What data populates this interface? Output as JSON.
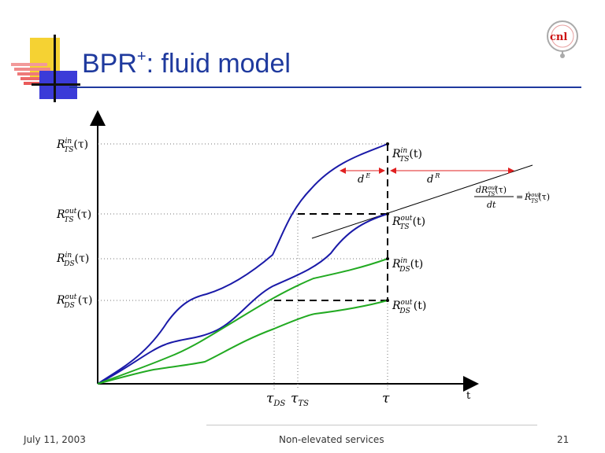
{
  "slide": {
    "title": "BPR",
    "title_sup": "+",
    "title_rest": ": fluid model",
    "footer_date": "July 11, 2003",
    "footer_center": "Non-elevated services",
    "page_number": "21"
  },
  "diagram": {
    "axis_x_label": "t",
    "y_labels": {
      "r_ts_in": {
        "base": "R",
        "sup": "in",
        "sub": "TS",
        "arg": "(τ)"
      },
      "r_ts_out": {
        "base": "R",
        "sup": "out",
        "sub": "TS",
        "arg": "(τ)"
      },
      "r_ds_in": {
        "base": "R",
        "sup": "in",
        "sub": "DS",
        "arg": "(τ)"
      },
      "r_ds_out": {
        "base": "R",
        "sup": "out",
        "sub": "DS",
        "arg": "(τ)"
      }
    },
    "curve_labels": {
      "r_ts_in_t": {
        "base": "R",
        "sup": "in",
        "sub": "TS",
        "arg": "(t)"
      },
      "r_ts_out_t": {
        "base": "R",
        "sup": "out",
        "sub": "TS",
        "arg": "(t)"
      },
      "r_ds_in_t": {
        "base": "R",
        "sup": "in",
        "sub": "DS",
        "arg": "(t)"
      },
      "r_ds_out_t": {
        "base": "R",
        "sup": "out",
        "sub": "DS",
        "arg": "(t)"
      }
    },
    "x_ticks": {
      "tau_ds": {
        "base": "τ",
        "sub": "DS"
      },
      "tau_ts": {
        "base": "τ",
        "sub": "TS"
      },
      "tau": {
        "base": "τ"
      }
    },
    "delays": {
      "d_e": {
        "base": "d",
        "sup": "E"
      },
      "d_r": {
        "base": "d",
        "sup": "R"
      }
    },
    "derivative": {
      "numerator": "dR",
      "num_sup": "out",
      "num_sub": "TS",
      "num_arg": "(τ)",
      "denominator": "dt",
      "equals": "=",
      "rhs_base": "Ṙ",
      "rhs_sup": "out",
      "rhs_sub": "TS",
      "rhs_arg": "(τ)"
    },
    "colors": {
      "blue_curve": "#1a1aa8",
      "green_curve": "#22aa22",
      "red_arrow": "#e02020",
      "title": "#1f3a9e"
    }
  }
}
